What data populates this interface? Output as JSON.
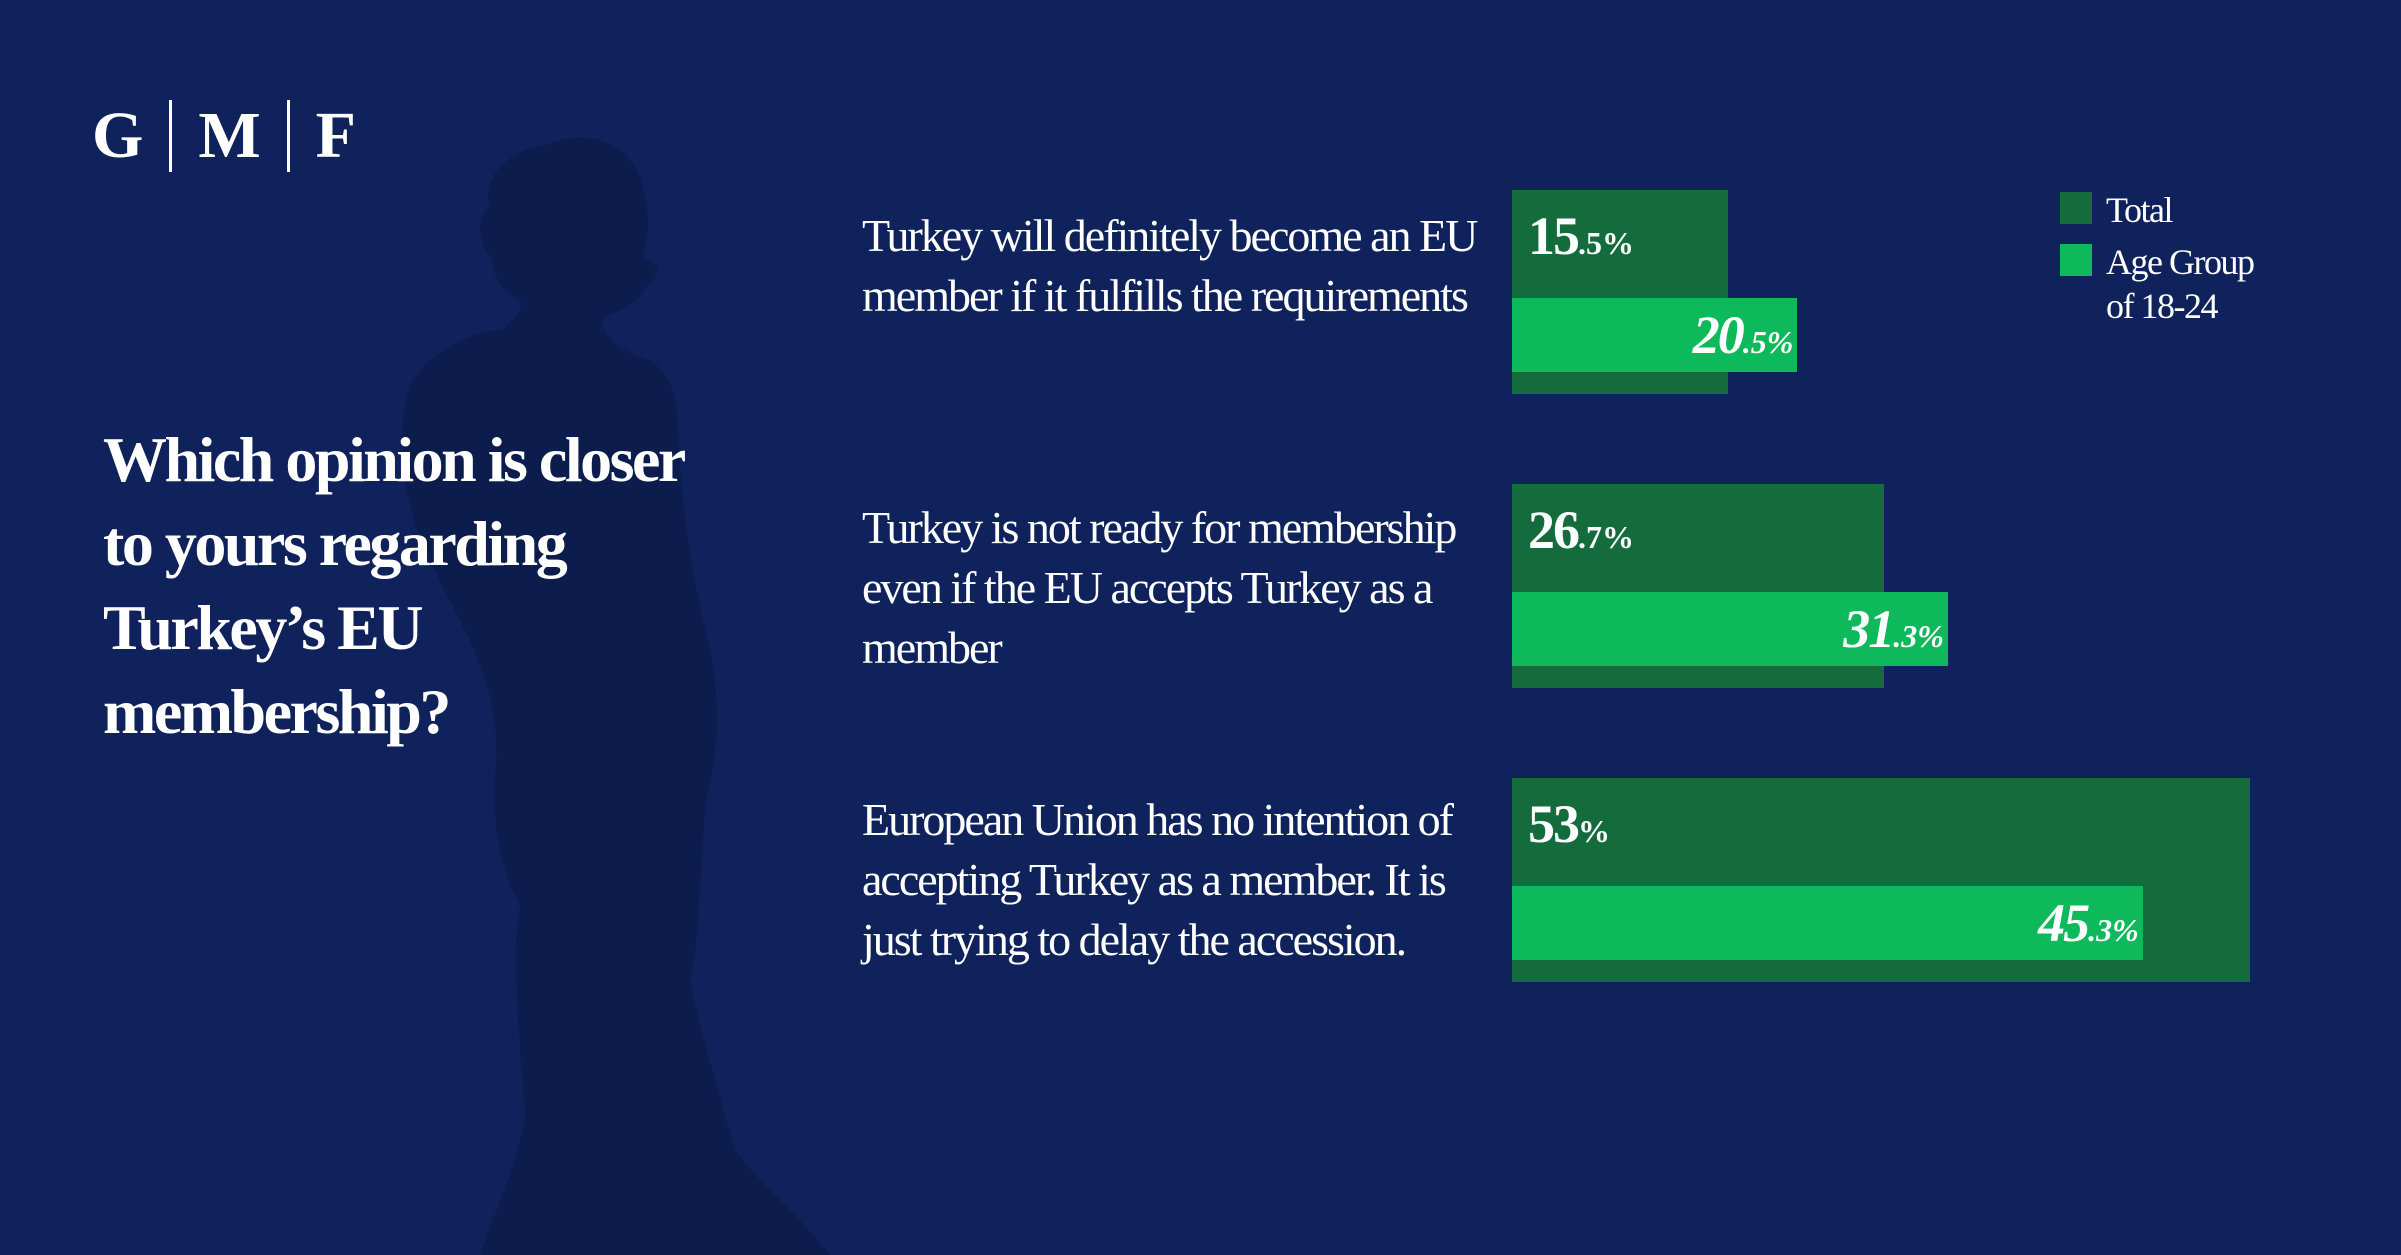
{
  "brand": {
    "letters": [
      "G",
      "M",
      "F"
    ]
  },
  "colors": {
    "background": "#10225c",
    "silhouette": "#0c1d4d",
    "total": "#146b3c",
    "age_group": "#0db95a",
    "text": "#ffffff"
  },
  "chart_data": {
    "type": "bar",
    "orientation": "horizontal",
    "title": "Which opinion is closer to yours regarding Turkey’s EU membership?",
    "categories": [
      "Turkey will definitely become an EU member if it fulfills the requirements",
      "Turkey is not ready for membership even if the EU accepts Turkey as a member",
      "European Union has no intention of accepting Turkey as a member. It is just trying to delay the accession."
    ],
    "series": [
      {
        "name": "Total",
        "values": [
          15.5,
          26.7,
          53
        ],
        "labels": [
          {
            "num": "15",
            "unit": ".5%"
          },
          {
            "num": "26",
            "unit": ".7%"
          },
          {
            "num": "53",
            "unit": "%"
          }
        ]
      },
      {
        "name": "Age Group of 18-24",
        "values": [
          20.5,
          31.3,
          45.3
        ],
        "labels": [
          {
            "num": "20",
            "unit": ".5%"
          },
          {
            "num": "31",
            "unit": ".3%"
          },
          {
            "num": "45",
            "unit": ".3%"
          }
        ]
      }
    ],
    "xlim": [
      0,
      53
    ],
    "legend": "top-right",
    "grid": false
  }
}
